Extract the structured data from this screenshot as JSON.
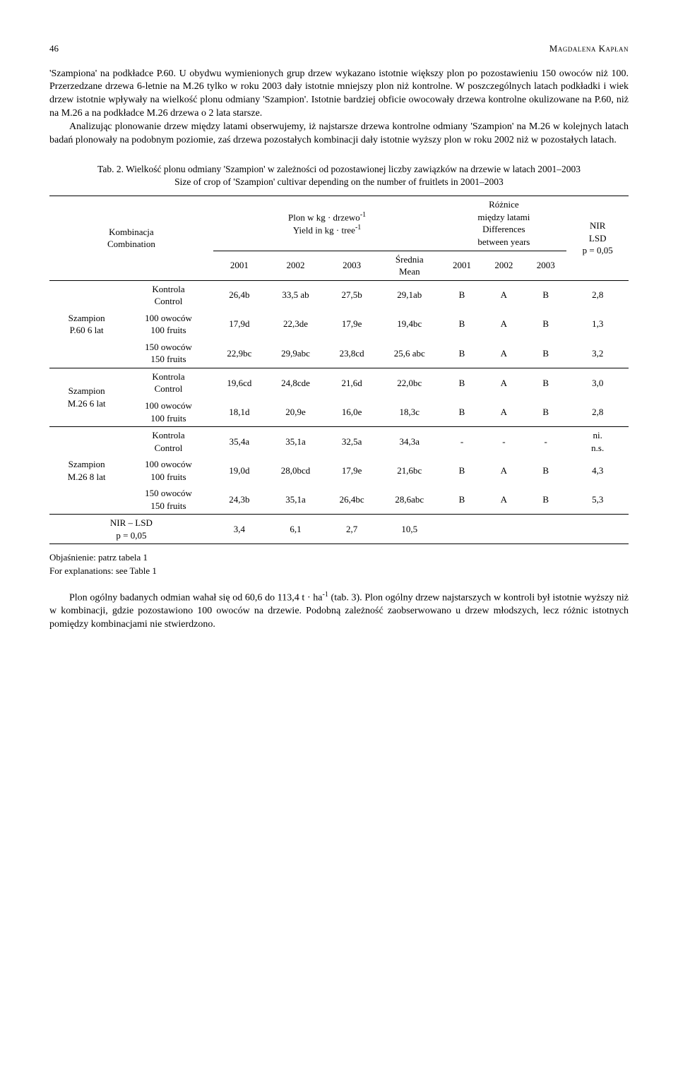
{
  "header": {
    "page_number": "46",
    "author": "Magdalena Kapłan"
  },
  "paragraphs": {
    "p1": "'Szampiona' na podkładce P.60. U obydwu wymienionych grup drzew wykazano istotnie większy plon po pozostawieniu 150 owoców niż 100. Przerzedzane drzewa 6-letnie na M.26 tylko w roku 2003 dały istotnie mniejszy plon niż kontrolne. W poszczególnych latach podkładki i wiek drzew istotnie wpływały na wielkość plonu odmiany 'Szampion'. Istotnie bardziej obficie owocowały drzewa kontrolne okulizowane na P.60, niż na M.26 a na podkładce M.26 drzewa o 2 lata starsze.",
    "p2": "Analizując plonowanie drzew między latami obserwujemy, iż najstarsze drzewa kontrolne odmiany 'Szampion' na M.26 w kolejnych latach badań plonowały na podobnym poziomie, zaś drzewa pozostałych kombinacji dały istotnie wyższy plon w roku 2002 niż w pozostałych latach.",
    "p3a": "Plon ogólny badanych odmian wahał się od 60,6 do 113,4 t · ha",
    "p3b": " (tab. 3). Plon ogólny drzew najstarszych w kontroli był istotnie wyższy niż w kombinacji, gdzie pozostawiono 100 owoców na drzewie. Podobną zależność zaobserwowano u drzew młodszych, lecz różnic istotnych pomiędzy kombinacjami nie stwierdzono.",
    "sup1": "-1"
  },
  "table": {
    "caption_pl": "Tab. 2. Wielkość plonu odmiany 'Szampion' w zależności od pozostawionej liczby zawiązków na drzewie w latach 2001–2003",
    "caption_en": "Size of crop of 'Szampion' cultivar depending on the number of fruitlets  in 2001–2003",
    "head": {
      "combination_pl": "Kombinacja",
      "combination_en": "Combination",
      "yield_pl": "Plon w kg · drzewo",
      "yield_en": "Yield in kg · tree",
      "sup": "-1",
      "diff_pl": "Różnice",
      "diff_pl2": "między latami",
      "diff_en": "Differences",
      "diff_en2": "between years",
      "nir": "NIR",
      "lsd": "LSD",
      "p": "p = 0,05",
      "y2001": "2001",
      "y2002": "2002",
      "y2003": "2003",
      "mean_pl": "Średnia",
      "mean_en": "Mean"
    },
    "groups": [
      {
        "label": "Szampion P.60 6 lat",
        "rows": [
          {
            "treat_pl": "Kontrola",
            "treat_en": "Control",
            "v": [
              "26,4b",
              "33,5 ab",
              "27,5b",
              "29,1ab",
              "B",
              "A",
              "B",
              "2,8"
            ]
          },
          {
            "treat_pl": "100 owoców",
            "treat_en": "100 fruits",
            "v": [
              "17,9d",
              "22,3de",
              "17,9e",
              "19,4bc",
              "B",
              "A",
              "B",
              "1,3"
            ]
          },
          {
            "treat_pl": "150 owoców",
            "treat_en": "150 fruits",
            "v": [
              "22,9bc",
              "29,9abc",
              "23,8cd",
              "25,6 abc",
              "B",
              "A",
              "B",
              "3,2"
            ]
          }
        ]
      },
      {
        "label": "Szampion M.26 6 lat",
        "rows": [
          {
            "treat_pl": "Kontrola",
            "treat_en": "Control",
            "v": [
              "19,6cd",
              "24,8cde",
              "21,6d",
              "22,0bc",
              "B",
              "A",
              "B",
              "3,0"
            ]
          },
          {
            "treat_pl": "100 owoców",
            "treat_en": "100 fruits",
            "v": [
              "18,1d",
              "20,9e",
              "16,0e",
              "18,3c",
              "B",
              "A",
              "B",
              "2,8"
            ]
          }
        ]
      },
      {
        "label": "Szampion M.26 8 lat",
        "rows": [
          {
            "treat_pl": "Kontrola",
            "treat_en": "Control",
            "v": [
              "35,4a",
              "35,1a",
              "32,5a",
              "34,3a",
              "-",
              "-",
              "-",
              "ni. n.s."
            ]
          },
          {
            "treat_pl": "100 owoców",
            "treat_en": "100 fruits",
            "v": [
              "19,0d",
              "28,0bcd",
              "17,9e",
              "21,6bc",
              "B",
              "A",
              "B",
              "4,3"
            ]
          },
          {
            "treat_pl": "150 owoców",
            "treat_en": "150 fruits",
            "v": [
              "24,3b",
              "35,1a",
              "26,4bc",
              "28,6abc",
              "B",
              "A",
              "B",
              "5,3"
            ]
          }
        ]
      }
    ],
    "lsd_row": {
      "label_pl": "NIR – LSD",
      "label_p": "p = 0,05",
      "v": [
        "3,4",
        "6,1",
        "2,7",
        "10,5"
      ]
    },
    "note_pl": "Objaśnienie: patrz tabela 1",
    "note_en": "For explanations: see Table 1"
  }
}
